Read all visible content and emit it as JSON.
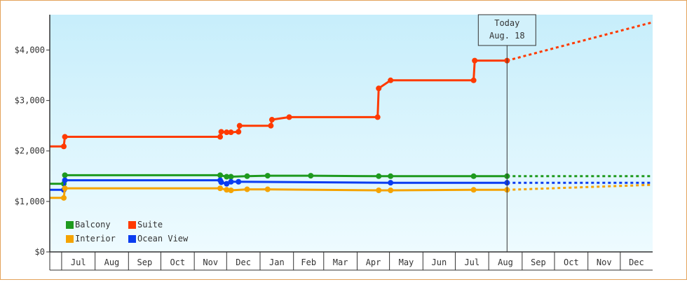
{
  "chart_data": {
    "type": "line",
    "step": true,
    "y_ticks": [
      "$0",
      "$1,000",
      "$2,000",
      "$3,000",
      "$4,000"
    ],
    "ylim": [
      0,
      4700
    ],
    "month_labels": [
      "Jul",
      "Aug",
      "Sep",
      "Oct",
      "Nov",
      "Dec",
      "Jan",
      "Feb",
      "Mar",
      "Apr",
      "May",
      "Jun",
      "Jul",
      "Aug",
      "Sep",
      "Oct",
      "Nov",
      "Dec"
    ],
    "xlim": [
      "2020-06-20",
      "2021-12-31"
    ],
    "today": {
      "line1": "Today",
      "line2": "Aug. 18",
      "date": "2021-08-18"
    },
    "legend_placement": "bottom-left",
    "legend": [
      {
        "name": "Balcony",
        "color": "#1e9a1e"
      },
      {
        "name": "Suite",
        "color": "#ff3a00"
      },
      {
        "name": "Interior",
        "color": "#f5a300"
      },
      {
        "name": "Ocean View",
        "color": "#0a3cf0"
      }
    ],
    "series": [
      {
        "name": "Suite",
        "color": "#ff3a00",
        "x": [
          "2020-06-20",
          "2020-07-03",
          "2020-07-04",
          "2020-11-25",
          "2020-11-26",
          "2020-12-01",
          "2020-12-05",
          "2020-12-12",
          "2020-12-13",
          "2021-01-11",
          "2021-01-12",
          "2021-01-28",
          "2021-04-20",
          "2021-04-21",
          "2021-05-02",
          "2021-07-18",
          "2021-07-19",
          "2021-08-18"
        ],
        "y": [
          2090,
          2090,
          2280,
          2280,
          2380,
          2370,
          2370,
          2380,
          2500,
          2500,
          2620,
          2670,
          2670,
          3240,
          3400,
          3400,
          3790,
          3790
        ],
        "forecast": {
          "x": [
            "2021-08-18",
            "2021-12-31"
          ],
          "y": [
            3790,
            4550
          ]
        }
      },
      {
        "name": "Balcony",
        "color": "#1e9a1e",
        "x": [
          "2020-06-20",
          "2020-07-03",
          "2020-07-04",
          "2020-11-25",
          "2020-12-01",
          "2020-12-05",
          "2020-12-20",
          "2021-01-08",
          "2021-02-17",
          "2021-04-21",
          "2021-05-02",
          "2021-07-18",
          "2021-08-18"
        ],
        "y": [
          1350,
          1350,
          1520,
          1520,
          1490,
          1490,
          1500,
          1510,
          1510,
          1500,
          1500,
          1500,
          1500
        ],
        "forecast": {
          "x": [
            "2021-08-18",
            "2021-12-31"
          ],
          "y": [
            1500,
            1500
          ]
        }
      },
      {
        "name": "Ocean View",
        "color": "#0a3cf0",
        "x": [
          "2020-06-20",
          "2020-07-03",
          "2020-07-04",
          "2020-11-25",
          "2020-11-26",
          "2020-12-01",
          "2020-12-05",
          "2020-12-12",
          "2021-05-02",
          "2021-08-18"
        ],
        "y": [
          1230,
          1230,
          1420,
          1420,
          1380,
          1350,
          1390,
          1390,
          1370,
          1370
        ],
        "forecast": {
          "x": [
            "2021-08-18",
            "2021-12-31"
          ],
          "y": [
            1370,
            1370
          ]
        }
      },
      {
        "name": "Interior",
        "color": "#f5a300",
        "x": [
          "2020-06-20",
          "2020-07-03",
          "2020-07-04",
          "2020-11-25",
          "2020-12-01",
          "2020-12-05",
          "2020-12-20",
          "2021-01-08",
          "2021-04-21",
          "2021-05-02",
          "2021-07-18",
          "2021-08-18"
        ],
        "y": [
          1070,
          1070,
          1260,
          1260,
          1230,
          1220,
          1240,
          1240,
          1220,
          1220,
          1230,
          1230
        ],
        "forecast": {
          "x": [
            "2021-08-18",
            "2021-12-31"
          ],
          "y": [
            1230,
            1330
          ]
        }
      }
    ]
  }
}
